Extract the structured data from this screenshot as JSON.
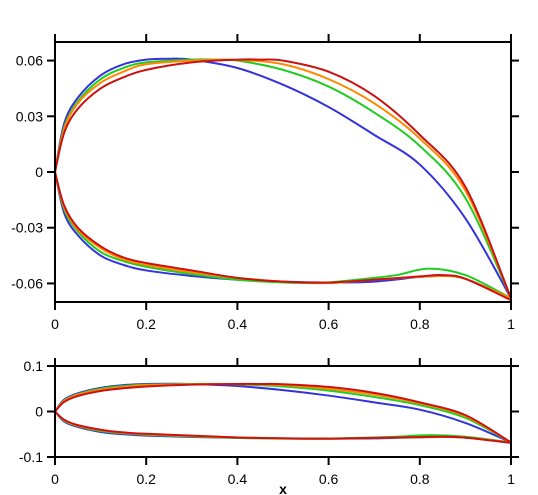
{
  "chart_data": [
    {
      "type": "line",
      "panel": "top",
      "title": "",
      "xlabel": "",
      "ylabel": "",
      "xlim": [
        0,
        1
      ],
      "ylim": [
        -0.07,
        0.07
      ],
      "x_ticks": [
        0,
        0.2,
        0.4,
        0.6,
        0.8,
        1
      ],
      "x_tick_labels": [
        "0",
        "0.2",
        "0.4",
        "0.6",
        "0.8",
        "1"
      ],
      "y_ticks": [
        -0.06,
        -0.03,
        0,
        0.03,
        0.06
      ],
      "y_tick_labels": [
        "-0.06",
        "-0.03",
        "0",
        "0.03",
        "0.06"
      ],
      "grid": false,
      "legend": "none",
      "series": [
        {
          "color": "#3333dd",
          "upper": {
            "x": [
              0,
              0.02,
              0.05,
              0.1,
              0.15,
              0.2,
              0.25,
              0.3,
              0.4,
              0.5,
              0.6,
              0.7,
              0.8,
              0.9,
              1.0
            ],
            "y": [
              0,
              0.026,
              0.04,
              0.052,
              0.058,
              0.0605,
              0.061,
              0.0605,
              0.056,
              0.047,
              0.035,
              0.02,
              0.004,
              -0.025,
              -0.068
            ]
          },
          "lower": {
            "x": [
              0,
              0.02,
              0.05,
              0.1,
              0.15,
              0.2,
              0.3,
              0.4,
              0.5,
              0.6,
              0.7,
              0.8,
              0.85,
              0.9,
              1.0
            ],
            "y": [
              0,
              -0.022,
              -0.034,
              -0.045,
              -0.05,
              -0.053,
              -0.056,
              -0.058,
              -0.059,
              -0.0595,
              -0.059,
              -0.0565,
              -0.056,
              -0.0575,
              -0.068
            ]
          }
        },
        {
          "color": "#22cc22",
          "upper": {
            "x": [
              0,
              0.02,
              0.05,
              0.1,
              0.15,
              0.2,
              0.3,
              0.35,
              0.4,
              0.5,
              0.6,
              0.7,
              0.8,
              0.9,
              1.0
            ],
            "y": [
              0,
              0.024,
              0.038,
              0.05,
              0.056,
              0.059,
              0.0605,
              0.0605,
              0.06,
              0.055,
              0.046,
              0.032,
              0.014,
              -0.014,
              -0.068
            ]
          },
          "lower": {
            "x": [
              0,
              0.02,
              0.05,
              0.1,
              0.15,
              0.2,
              0.3,
              0.4,
              0.5,
              0.55,
              0.6,
              0.7,
              0.75,
              0.82,
              0.9,
              1.0
            ],
            "y": [
              0,
              -0.02,
              -0.032,
              -0.043,
              -0.048,
              -0.051,
              -0.055,
              -0.058,
              -0.0595,
              -0.0598,
              -0.0595,
              -0.057,
              -0.0555,
              -0.052,
              -0.0555,
              -0.068
            ]
          }
        },
        {
          "color": "#ff8800",
          "upper": {
            "x": [
              0,
              0.02,
              0.05,
              0.1,
              0.15,
              0.2,
              0.3,
              0.4,
              0.5,
              0.6,
              0.7,
              0.8,
              0.9,
              1.0
            ],
            "y": [
              0,
              0.023,
              0.037,
              0.048,
              0.054,
              0.058,
              0.06,
              0.0603,
              0.058,
              0.05,
              0.037,
              0.018,
              -0.01,
              -0.068
            ]
          },
          "lower": {
            "x": [
              0,
              0.02,
              0.05,
              0.1,
              0.15,
              0.2,
              0.3,
              0.4,
              0.5,
              0.6,
              0.7,
              0.8,
              0.85,
              0.9,
              1.0
            ],
            "y": [
              0,
              -0.019,
              -0.031,
              -0.041,
              -0.047,
              -0.05,
              -0.054,
              -0.057,
              -0.059,
              -0.0598,
              -0.058,
              -0.0565,
              -0.056,
              -0.0575,
              -0.068
            ]
          }
        },
        {
          "color": "#cc1111",
          "upper": {
            "x": [
              0,
              0.02,
              0.05,
              0.1,
              0.15,
              0.2,
              0.3,
              0.4,
              0.45,
              0.5,
              0.6,
              0.7,
              0.8,
              0.9,
              1.0
            ],
            "y": [
              0,
              0.021,
              0.034,
              0.045,
              0.051,
              0.055,
              0.059,
              0.0605,
              0.0605,
              0.06,
              0.054,
              0.041,
              0.02,
              -0.008,
              -0.068
            ]
          },
          "lower": {
            "x": [
              0,
              0.02,
              0.05,
              0.1,
              0.15,
              0.2,
              0.3,
              0.4,
              0.5,
              0.6,
              0.7,
              0.8,
              0.85,
              0.9,
              1.0
            ],
            "y": [
              0,
              -0.018,
              -0.03,
              -0.04,
              -0.046,
              -0.049,
              -0.053,
              -0.057,
              -0.059,
              -0.0595,
              -0.058,
              -0.0562,
              -0.0555,
              -0.0575,
              -0.069
            ]
          }
        }
      ]
    },
    {
      "type": "line",
      "panel": "bottom",
      "title": "",
      "xlabel": "x",
      "ylabel": "",
      "xlim": [
        0,
        1
      ],
      "ylim": [
        -0.1,
        0.1
      ],
      "x_ticks": [
        0,
        0.2,
        0.4,
        0.6,
        0.8,
        1
      ],
      "x_tick_labels": [
        "0",
        "0.2",
        "0.4",
        "0.6",
        "0.8",
        "1"
      ],
      "y_ticks": [
        -0.1,
        0,
        0.1
      ],
      "y_tick_labels": [
        "-0.1",
        "0",
        "0.1"
      ],
      "grid": false,
      "legend": "none",
      "series": [
        {
          "color": "#3333dd",
          "same_as_top_index": 0
        },
        {
          "color": "#22cc22",
          "same_as_top_index": 1
        },
        {
          "color": "#ff8800",
          "same_as_top_index": 2
        },
        {
          "color": "#cc1111",
          "same_as_top_index": 3
        }
      ]
    }
  ]
}
